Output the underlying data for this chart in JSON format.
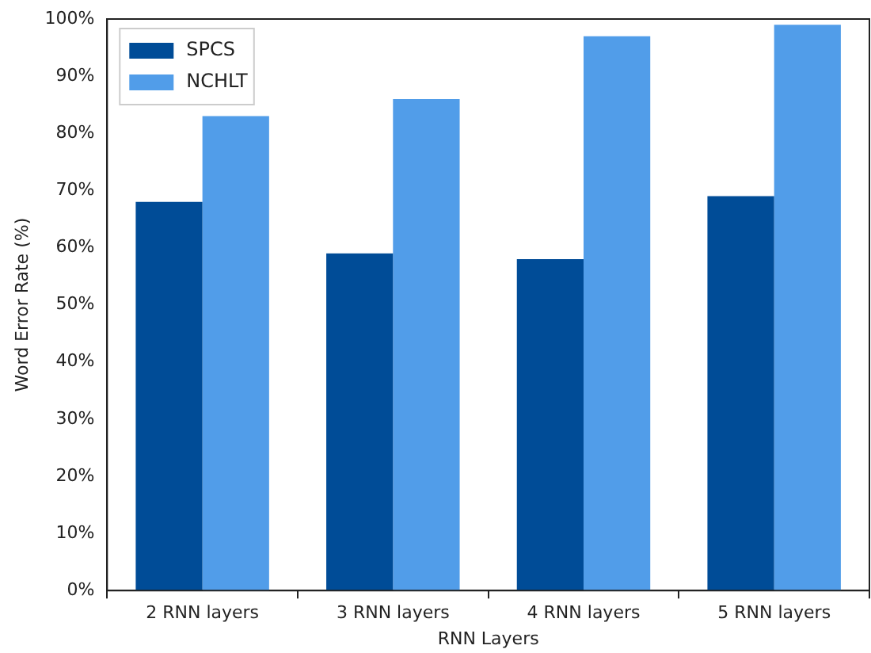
{
  "chart_data": {
    "type": "bar",
    "xlabel": "RNN Layers",
    "ylabel": "Word Error Rate (%)",
    "categories": [
      "2 RNN layers",
      "3 RNN layers",
      "4 RNN layers",
      "5 RNN layers"
    ],
    "series": [
      {
        "name": "SPCS",
        "color": "#004c97",
        "values": [
          68,
          59,
          58,
          69
        ]
      },
      {
        "name": "NCHLT",
        "color": "#519de9",
        "values": [
          83,
          86,
          97,
          99
        ]
      }
    ],
    "ylim": [
      0,
      100
    ],
    "yticks": [
      {
        "value": 0,
        "label": "0%"
      },
      {
        "value": 10,
        "label": "10%"
      },
      {
        "value": 20,
        "label": "20%"
      },
      {
        "value": 30,
        "label": "30%"
      },
      {
        "value": 40,
        "label": "40%"
      },
      {
        "value": 50,
        "label": "50%"
      },
      {
        "value": 60,
        "label": "60%"
      },
      {
        "value": 70,
        "label": "70%"
      },
      {
        "value": 80,
        "label": "80%"
      },
      {
        "value": 90,
        "label": "90%"
      },
      {
        "value": 100,
        "label": "100%"
      }
    ],
    "grid": false,
    "legend": "top left"
  }
}
